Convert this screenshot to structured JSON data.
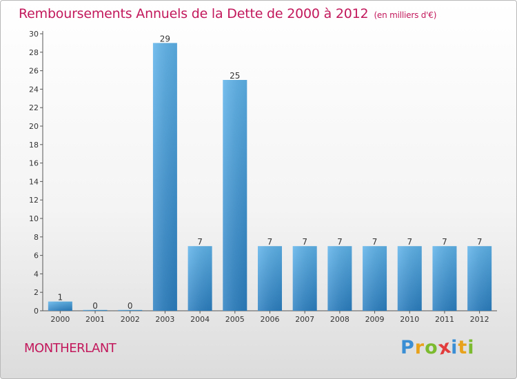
{
  "title": "Remboursements Annuels de la Dette de 2000 à 2012",
  "subtitle": "(en milliers d'€)",
  "commune": "MONTHERLANT",
  "logo": {
    "letters": [
      "P",
      "r",
      "o",
      "x",
      "i",
      "t",
      "i"
    ],
    "colors": [
      "#3a8fd4",
      "#e8a21c",
      "#7cbb2f",
      "#e23c3c",
      "#3a8fd4",
      "#e8a21c",
      "#7cbb2f"
    ]
  },
  "colors": {
    "accent": "#c2185b",
    "bar_top": "#5eb3ea",
    "bar_bottom": "#2b7fc1"
  },
  "chart_data": {
    "type": "bar",
    "categories": [
      "2000",
      "2001",
      "2002",
      "2003",
      "2004",
      "2005",
      "2006",
      "2007",
      "2008",
      "2009",
      "2010",
      "2011",
      "2012"
    ],
    "values": [
      1,
      0,
      0,
      29,
      7,
      25,
      7,
      7,
      7,
      7,
      7,
      7,
      7
    ],
    "data_labels": [
      "1",
      "0",
      "0",
      "29",
      "7",
      "25",
      "7",
      "7",
      "7",
      "7",
      "7",
      "7",
      "7"
    ],
    "yticks": [
      0,
      2,
      4,
      6,
      8,
      10,
      12,
      14,
      16,
      18,
      20,
      22,
      24,
      26,
      28,
      30
    ],
    "ylim": [
      0,
      30
    ],
    "grid": false
  }
}
